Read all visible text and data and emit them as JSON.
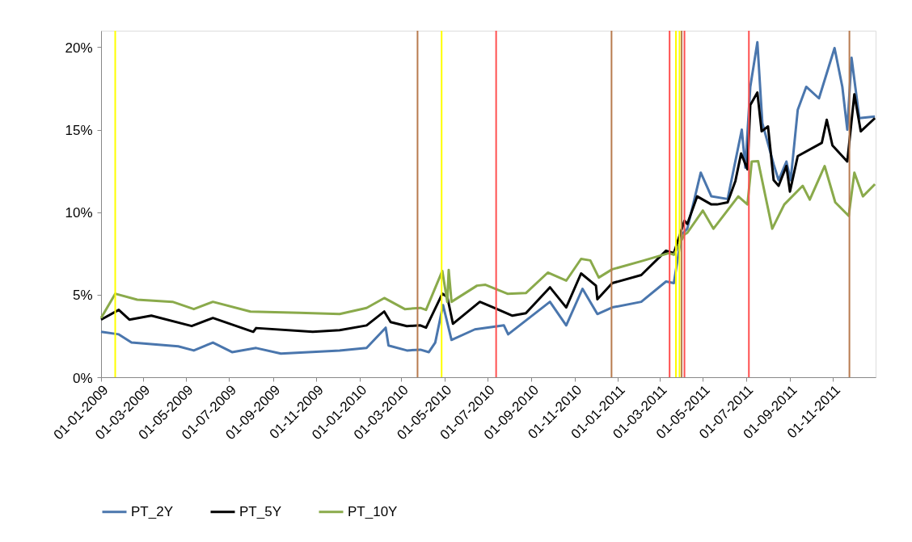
{
  "chart_data": {
    "type": "line",
    "xlim": [
      "2009-01-01",
      "2011-12-31"
    ],
    "ylim": [
      0,
      21
    ],
    "xticks": [
      {
        "value": "2009-01-01",
        "label": "01-01-2009"
      },
      {
        "value": "2009-03-01",
        "label": "01-03-2009"
      },
      {
        "value": "2009-05-01",
        "label": "01-05-2009"
      },
      {
        "value": "2009-07-01",
        "label": "01-07-2009"
      },
      {
        "value": "2009-09-01",
        "label": "01-09-2009"
      },
      {
        "value": "2009-11-01",
        "label": "01-11-2009"
      },
      {
        "value": "2010-01-01",
        "label": "01-01-2010"
      },
      {
        "value": "2010-03-01",
        "label": "01-03-2010"
      },
      {
        "value": "2010-05-01",
        "label": "01-05-2010"
      },
      {
        "value": "2010-07-01",
        "label": "01-07-2010"
      },
      {
        "value": "2010-09-01",
        "label": "01-09-2010"
      },
      {
        "value": "2010-11-01",
        "label": "01-11-2010"
      },
      {
        "value": "2011-01-01",
        "label": "01-01-2011"
      },
      {
        "value": "2011-03-01",
        "label": "01-03-2011"
      },
      {
        "value": "2011-05-01",
        "label": "01-05-2011"
      },
      {
        "value": "2011-07-01",
        "label": "01-07-2011"
      },
      {
        "value": "2011-09-01",
        "label": "01-09-2011"
      },
      {
        "value": "2011-11-01",
        "label": "01-11-2011"
      }
    ],
    "yticks": [
      {
        "value": 0,
        "label": "0%"
      },
      {
        "value": 5,
        "label": "5%"
      },
      {
        "value": 10,
        "label": "10%"
      },
      {
        "value": 15,
        "label": "15%"
      },
      {
        "value": 20,
        "label": "20%"
      }
    ],
    "grid": false,
    "legend": "bottom",
    "marker": "none",
    "line_style": "solid",
    "series": [
      {
        "name": "PT_2Y",
        "color": "#4a76ad",
        "x": [
          "2009-01-01",
          "2009-01-26",
          "2009-02-13",
          "2009-04-20",
          "2009-05-12",
          "2009-06-08",
          "2009-07-05",
          "2009-08-08",
          "2009-09-12",
          "2009-12-04",
          "2010-01-11",
          "2010-02-07",
          "2010-02-11",
          "2010-03-09",
          "2010-03-28",
          "2010-04-09",
          "2010-04-18",
          "2010-04-29",
          "2010-05-11",
          "2010-06-13",
          "2010-07-24",
          "2010-07-30",
          "2010-09-27",
          "2010-10-20",
          "2010-11-12",
          "2010-12-03",
          "2010-12-24",
          "2011-02-03",
          "2011-03-10",
          "2011-03-21",
          "2011-04-01",
          "2011-04-09",
          "2011-04-20",
          "2011-04-28",
          "2011-05-13",
          "2011-06-05",
          "2011-06-25",
          "2011-06-30",
          "2011-07-07",
          "2011-07-17",
          "2011-07-24",
          "2011-08-09",
          "2011-08-16",
          "2011-08-27",
          "2011-09-02",
          "2011-09-12",
          "2011-09-24",
          "2011-10-12",
          "2011-11-03",
          "2011-11-14",
          "2011-11-21",
          "2011-11-27",
          "2011-12-08",
          "2011-12-30"
        ],
        "values": [
          2.75,
          2.6,
          2.1,
          1.87,
          1.62,
          2.1,
          1.52,
          1.77,
          1.43,
          1.62,
          1.77,
          3.0,
          1.92,
          1.62,
          1.67,
          1.52,
          2.1,
          4.37,
          2.26,
          2.9,
          3.14,
          2.6,
          4.57,
          3.14,
          5.36,
          3.83,
          4.23,
          4.57,
          5.8,
          5.7,
          8.65,
          9.0,
          10.96,
          12.4,
          10.96,
          10.8,
          15.0,
          12.7,
          17.6,
          20.3,
          15.4,
          12.9,
          11.94,
          13.07,
          11.94,
          16.2,
          17.6,
          16.9,
          19.95,
          17.6,
          15.0,
          19.36,
          15.7,
          15.8
        ]
      },
      {
        "name": "PT_5Y",
        "color": "#000000",
        "x": [
          "2009-01-01",
          "2009-01-26",
          "2009-02-10",
          "2009-03-13",
          "2009-05-09",
          "2009-06-08",
          "2009-08-04",
          "2009-08-08",
          "2009-10-27",
          "2009-12-04",
          "2010-01-11",
          "2010-02-05",
          "2010-02-14",
          "2010-03-09",
          "2010-03-28",
          "2010-04-05",
          "2010-04-28",
          "2010-05-05",
          "2010-05-13",
          "2010-06-20",
          "2010-07-09",
          "2010-08-05",
          "2010-08-24",
          "2010-09-27",
          "2010-10-20",
          "2010-11-10",
          "2010-12-01",
          "2010-12-03",
          "2010-12-24",
          "2011-02-03",
          "2011-03-10",
          "2011-03-21",
          "2011-04-05",
          "2011-04-09",
          "2011-04-23",
          "2011-05-13",
          "2011-05-21",
          "2011-06-05",
          "2011-06-16",
          "2011-06-24",
          "2011-07-03",
          "2011-07-07",
          "2011-07-17",
          "2011-07-23",
          "2011-08-01",
          "2011-08-09",
          "2011-08-16",
          "2011-08-27",
          "2011-09-01",
          "2011-09-12",
          "2011-10-16",
          "2011-10-23",
          "2011-10-31",
          "2011-11-21",
          "2011-12-01",
          "2011-12-10",
          "2011-12-30"
        ],
        "values": [
          3.49,
          4.08,
          3.49,
          3.73,
          3.1,
          3.59,
          2.75,
          2.98,
          2.75,
          2.85,
          3.14,
          3.98,
          3.34,
          3.1,
          3.14,
          3.0,
          5.06,
          4.87,
          3.24,
          4.57,
          4.23,
          3.73,
          3.88,
          5.45,
          4.23,
          6.29,
          5.55,
          4.72,
          5.7,
          6.19,
          7.67,
          7.52,
          9.48,
          9.29,
          10.96,
          10.47,
          10.47,
          10.6,
          11.9,
          13.56,
          12.6,
          16.5,
          17.25,
          14.9,
          15.2,
          11.94,
          11.6,
          12.8,
          11.25,
          13.4,
          14.2,
          15.6,
          14.05,
          13.07,
          17.15,
          14.9,
          15.7
        ]
      },
      {
        "name": "PT_10Y",
        "color": "#8aaa4b",
        "x": [
          "2009-01-01",
          "2009-01-21",
          "2009-02-21",
          "2009-04-12",
          "2009-05-12",
          "2009-06-08",
          "2009-07-31",
          "2009-10-08",
          "2009-12-04",
          "2010-01-11",
          "2010-02-05",
          "2010-03-06",
          "2010-03-28",
          "2010-04-05",
          "2010-04-28",
          "2010-05-05",
          "2010-05-07",
          "2010-05-11",
          "2010-06-16",
          "2010-06-28",
          "2010-07-29",
          "2010-08-24",
          "2010-09-24",
          "2010-10-20",
          "2010-11-10",
          "2010-11-23",
          "2010-12-05",
          "2010-12-24",
          "2011-02-03",
          "2011-03-14",
          "2011-03-21",
          "2011-04-05",
          "2011-04-09",
          "2011-05-01",
          "2011-05-16",
          "2011-06-20",
          "2011-07-03",
          "2011-07-09",
          "2011-07-18",
          "2011-08-07",
          "2011-08-24",
          "2011-09-19",
          "2011-09-29",
          "2011-10-20",
          "2011-11-04",
          "2011-11-23",
          "2011-12-01",
          "2011-12-13",
          "2011-12-30"
        ],
        "values": [
          3.59,
          5.06,
          4.7,
          4.57,
          4.13,
          4.57,
          3.98,
          3.9,
          3.83,
          4.2,
          4.8,
          4.13,
          4.2,
          4.08,
          6.44,
          4.57,
          6.5,
          4.57,
          5.55,
          5.6,
          5.06,
          5.1,
          6.34,
          5.85,
          7.17,
          7.08,
          6.04,
          6.54,
          7.03,
          7.52,
          7.42,
          8.65,
          8.75,
          10.1,
          9.0,
          10.96,
          10.47,
          13.07,
          13.1,
          9.0,
          10.47,
          11.6,
          10.76,
          12.8,
          10.6,
          9.78,
          12.4,
          10.96,
          11.7
        ]
      }
    ],
    "ref_lines": [
      {
        "axis": "x",
        "value": "2009-01-21",
        "color": "#ffff00"
      },
      {
        "axis": "x",
        "value": "2010-03-24",
        "color": "#b87b4f"
      },
      {
        "axis": "x",
        "value": "2010-04-27",
        "color": "#ffff00"
      },
      {
        "axis": "x",
        "value": "2010-07-13",
        "color": "#ff5050"
      },
      {
        "axis": "x",
        "value": "2010-12-23",
        "color": "#b87b4f"
      },
      {
        "axis": "x",
        "value": "2011-03-15",
        "color": "#ff5050"
      },
      {
        "axis": "x",
        "value": "2011-03-24",
        "color": "#b87b4f"
      },
      {
        "axis": "x",
        "value": "2011-03-24",
        "color": "#ffff00"
      },
      {
        "axis": "x",
        "value": "2011-03-29",
        "color": "#ffff00"
      },
      {
        "axis": "x",
        "value": "2011-04-01",
        "color": "#b87b4f"
      },
      {
        "axis": "x",
        "value": "2011-04-05",
        "color": "#ff5050"
      },
      {
        "axis": "x",
        "value": "2011-07-05",
        "color": "#ff5050"
      },
      {
        "axis": "x",
        "value": "2011-11-24",
        "color": "#b87b4f"
      }
    ]
  }
}
